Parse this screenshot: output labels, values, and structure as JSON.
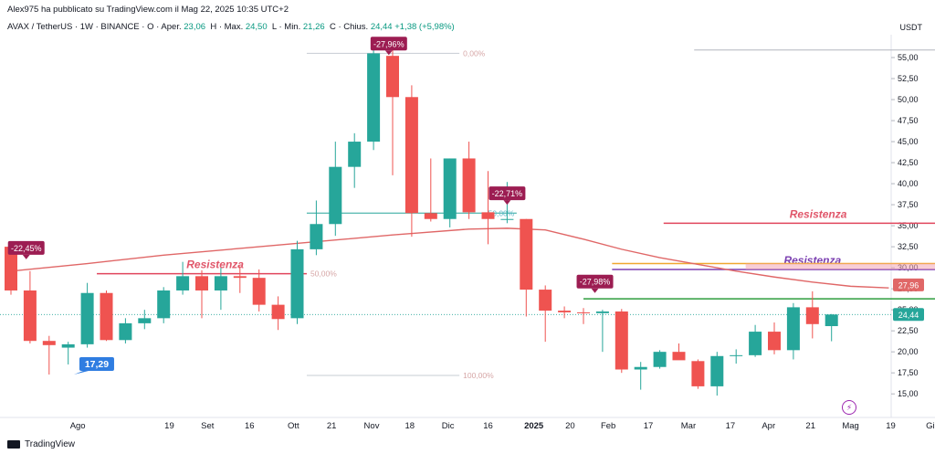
{
  "header": {
    "publisher": "Alex975 ha pubblicato su TradingView.com il Mag 22, 2025 10:35 UTC+2",
    "symbol": "AVAX / TetherUS · 1W · BINANCE",
    "o_label": "O",
    "open_label": "Aper.",
    "open": "23,06",
    "high_label": "H · Max.",
    "high": "24,50",
    "low_label": "L · Min.",
    "low": "21,26",
    "close_label": "C · Chius.",
    "close": "24,44",
    "change": "+1,38 (+5,98%)",
    "currency": "USDT"
  },
  "footer": {
    "brand": "TradingView"
  },
  "colors": {
    "up": "#26a69a",
    "down": "#ef5350",
    "ma": "#e06767",
    "resist": "#e0455c",
    "resist_text": "#e0566a",
    "purple": "#7b3fb1",
    "green_line": "#2e9d3e",
    "orange_line": "#f0a830",
    "fib": "#c7ccd3",
    "fib_text": "#d6a6a6",
    "fib_mid": "#5fb9c8",
    "price_tag_up": "#26a69a",
    "price_tag_ma": "#e06767",
    "callout_down": "#9c1d52",
    "callout_low": "#2f7de1"
  },
  "chart_data": {
    "type": "candlestick",
    "interval": "1W",
    "ylim": [
      13.5,
      57.5
    ],
    "y_ticks": [
      "15,00",
      "17,50",
      "20,00",
      "22,50",
      "25,00",
      "27,50",
      "30,00",
      "32,50",
      "35,00",
      "37,50",
      "40,00",
      "42,50",
      "45,00",
      "47,50",
      "50,00",
      "52,50",
      "55,00"
    ],
    "x_ticks": [
      {
        "i": 3.5,
        "label": "Ago"
      },
      {
        "i": 8.3,
        "label": "19"
      },
      {
        "i": 10.3,
        "label": "Set"
      },
      {
        "i": 12.5,
        "label": "16"
      },
      {
        "i": 14.8,
        "label": "Ott"
      },
      {
        "i": 16.8,
        "label": "21"
      },
      {
        "i": 18.9,
        "label": "Nov"
      },
      {
        "i": 20.9,
        "label": "18"
      },
      {
        "i": 22.9,
        "label": "Dic"
      },
      {
        "i": 25.0,
        "label": "16"
      },
      {
        "i": 27.4,
        "label": "2025"
      },
      {
        "i": 29.3,
        "label": "20"
      },
      {
        "i": 31.3,
        "label": "Feb"
      },
      {
        "i": 33.4,
        "label": "17"
      },
      {
        "i": 35.5,
        "label": "Mar"
      },
      {
        "i": 37.7,
        "label": "17"
      },
      {
        "i": 39.7,
        "label": "Apr"
      },
      {
        "i": 41.9,
        "label": "21"
      },
      {
        "i": 44.0,
        "label": "Mag"
      },
      {
        "i": 46.1,
        "label": "19"
      },
      {
        "i": 48.3,
        "label": "Giu"
      }
    ],
    "candles": [
      {
        "o": 32.5,
        "h": 33.0,
        "l": 26.8,
        "c": 27.3
      },
      {
        "o": 27.3,
        "h": 29.6,
        "l": 21.0,
        "c": 21.3
      },
      {
        "o": 21.3,
        "h": 21.9,
        "l": 17.3,
        "c": 20.8
      },
      {
        "o": 20.5,
        "h": 21.2,
        "l": 18.5,
        "c": 20.9
      },
      {
        "o": 20.9,
        "h": 28.2,
        "l": 20.5,
        "c": 27.0
      },
      {
        "o": 27.0,
        "h": 27.3,
        "l": 21.3,
        "c": 21.4
      },
      {
        "o": 21.4,
        "h": 24.0,
        "l": 21.0,
        "c": 23.4
      },
      {
        "o": 23.4,
        "h": 25.0,
        "l": 22.7,
        "c": 24.0
      },
      {
        "o": 24.0,
        "h": 27.7,
        "l": 23.4,
        "c": 27.3
      },
      {
        "o": 27.3,
        "h": 30.7,
        "l": 26.8,
        "c": 29.0
      },
      {
        "o": 29.0,
        "h": 29.7,
        "l": 24.0,
        "c": 27.3
      },
      {
        "o": 27.3,
        "h": 30.0,
        "l": 25.0,
        "c": 29.0
      },
      {
        "o": 29.0,
        "h": 30.2,
        "l": 27.0,
        "c": 28.8
      },
      {
        "o": 28.8,
        "h": 29.8,
        "l": 24.8,
        "c": 25.6
      },
      {
        "o": 25.6,
        "h": 26.6,
        "l": 22.6,
        "c": 23.9
      },
      {
        "o": 24.0,
        "h": 33.2,
        "l": 23.3,
        "c": 32.2
      },
      {
        "o": 32.2,
        "h": 38.0,
        "l": 31.5,
        "c": 35.2
      },
      {
        "o": 35.2,
        "h": 45.0,
        "l": 33.8,
        "c": 42.0
      },
      {
        "o": 42.0,
        "h": 46.0,
        "l": 39.5,
        "c": 45.0
      },
      {
        "o": 45.0,
        "h": 56.5,
        "l": 44.0,
        "c": 55.5
      },
      {
        "o": 55.2,
        "h": 56.0,
        "l": 41.0,
        "c": 50.3
      },
      {
        "o": 50.3,
        "h": 51.7,
        "l": 33.7,
        "c": 36.5
      },
      {
        "o": 36.5,
        "h": 43.0,
        "l": 35.5,
        "c": 35.8
      },
      {
        "o": 35.8,
        "h": 43.0,
        "l": 34.8,
        "c": 43.0
      },
      {
        "o": 43.0,
        "h": 45.0,
        "l": 35.8,
        "c": 36.6
      },
      {
        "o": 36.6,
        "h": 41.5,
        "l": 32.8,
        "c": 35.8
      },
      {
        "o": 35.8,
        "h": 40.2,
        "l": 35.3,
        "c": 35.8
      },
      {
        "o": 35.8,
        "h": 35.8,
        "l": 24.2,
        "c": 27.4
      },
      {
        "o": 27.4,
        "h": 27.9,
        "l": 21.2,
        "c": 24.9
      },
      {
        "o": 24.9,
        "h": 25.4,
        "l": 24.0,
        "c": 24.7
      },
      {
        "o": 24.7,
        "h": 25.2,
        "l": 23.3,
        "c": 24.6
      },
      {
        "o": 24.6,
        "h": 25.0,
        "l": 20.0,
        "c": 24.8
      },
      {
        "o": 24.8,
        "h": 25.1,
        "l": 17.5,
        "c": 17.9
      },
      {
        "o": 17.9,
        "h": 18.8,
        "l": 15.5,
        "c": 18.2
      },
      {
        "o": 18.2,
        "h": 20.2,
        "l": 18.0,
        "c": 20.0
      },
      {
        "o": 20.0,
        "h": 21.0,
        "l": 19.2,
        "c": 19.0
      },
      {
        "o": 18.9,
        "h": 19.1,
        "l": 15.6,
        "c": 15.9
      },
      {
        "o": 15.9,
        "h": 20.0,
        "l": 14.8,
        "c": 19.5
      },
      {
        "o": 19.5,
        "h": 20.3,
        "l": 18.6,
        "c": 19.6
      },
      {
        "o": 19.6,
        "h": 23.2,
        "l": 19.4,
        "c": 22.4
      },
      {
        "o": 22.4,
        "h": 23.5,
        "l": 19.7,
        "c": 20.2
      },
      {
        "o": 20.2,
        "h": 25.8,
        "l": 19.1,
        "c": 25.3
      },
      {
        "o": 25.3,
        "h": 27.2,
        "l": 21.6,
        "c": 23.3
      },
      {
        "o": 23.06,
        "h": 24.5,
        "l": 21.26,
        "c": 24.44
      }
    ],
    "ma": {
      "x": [
        0,
        4,
        8,
        12,
        16,
        20,
        24,
        26,
        28,
        30,
        32,
        34,
        36,
        38,
        40,
        42,
        44,
        46
      ],
      "y": [
        29.6,
        30.5,
        31.5,
        32.3,
        33.1,
        33.9,
        34.6,
        34.7,
        34.5,
        33.4,
        32.2,
        31.2,
        30.4,
        29.6,
        28.9,
        28.3,
        27.8,
        27.6
      ]
    },
    "lines": [
      {
        "name": "resistenza-1",
        "y": 29.3,
        "i_from": 4.5,
        "i_to": 15.5,
        "label": "Resistenza",
        "label_i": 9.2,
        "color": "resist"
      },
      {
        "name": "resistenza-2",
        "y": 35.3,
        "i_from": 34.2,
        "i_to": 48.5,
        "label": "Resistenza",
        "label_i": 40.8,
        "color": "resist"
      },
      {
        "name": "resistenza-3",
        "y": 29.8,
        "i_from": 31.5,
        "i_to": 48.5,
        "label": "Resistenza",
        "label_i": 40.5,
        "color": "purple"
      },
      {
        "name": "support-green",
        "y": 26.3,
        "i_from": 30.0,
        "i_to": 48.5,
        "label": "",
        "label_i": 0,
        "color": "green_line"
      },
      {
        "name": "orange-top",
        "y": 30.5,
        "i_from": 31.5,
        "i_to": 48.5,
        "label": "",
        "label_i": 0,
        "color": "orange_line"
      }
    ],
    "fib": [
      {
        "y": 55.5,
        "i_from": 15.5,
        "i_to": 23.5,
        "label": "0,00%"
      },
      {
        "y": 29.3,
        "i_from": 15.5,
        "i_to": 15.5,
        "label": "50,00%"
      },
      {
        "y": 17.2,
        "i_from": 15.5,
        "i_to": 23.5,
        "label": "100,00%"
      },
      {
        "y": 36.5,
        "i_from": 15.5,
        "i_to": 26.5,
        "label": "50,00%",
        "mid": true
      }
    ],
    "callouts": [
      {
        "i": 0.8,
        "y": 31.0,
        "label": "-22,45%",
        "kind": "down"
      },
      {
        "i": 19.8,
        "y": 55.3,
        "label": "-27,96%",
        "kind": "down"
      },
      {
        "i": 26.0,
        "y": 37.5,
        "label": "-22,71%",
        "kind": "down"
      },
      {
        "i": 30.6,
        "y": 27.0,
        "label": "-27,98%",
        "kind": "down"
      },
      {
        "i": 3.3,
        "y": 17.3,
        "label": "17,29",
        "kind": "low"
      }
    ],
    "price_tags": [
      {
        "y": 27.96,
        "label": "27,96",
        "color": "price_tag_ma"
      },
      {
        "y": 24.44,
        "label": "24,44",
        "color": "price_tag_up"
      }
    ]
  }
}
